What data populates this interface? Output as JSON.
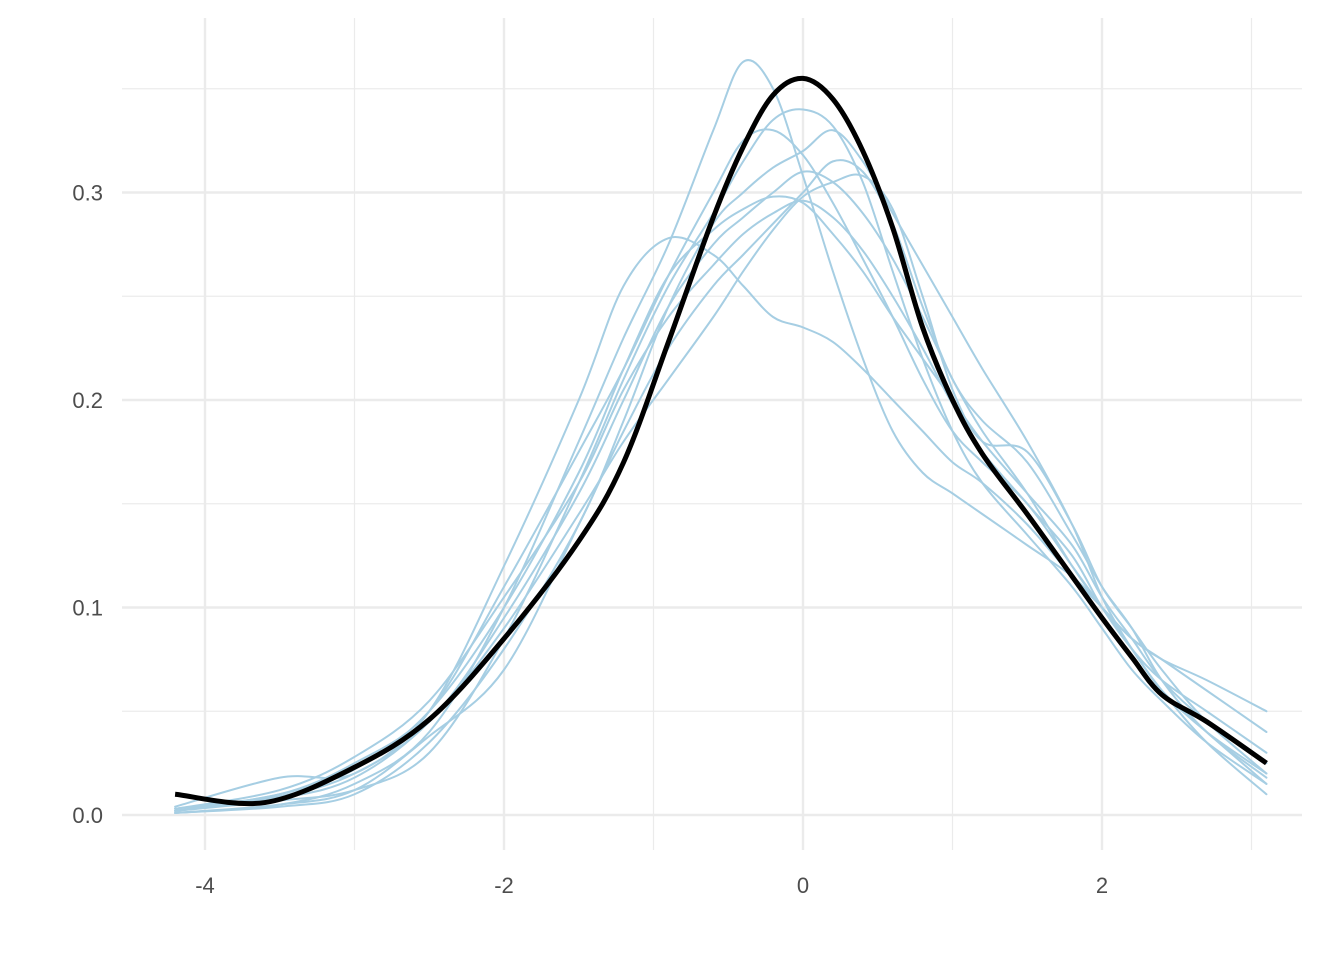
{
  "chart_data": {
    "type": "line",
    "title": "",
    "xlabel": "",
    "ylabel": "",
    "xlim": [
      -4.2,
      3.1
    ],
    "ylim": [
      0,
      0.355
    ],
    "x_ticks": [
      -4,
      -2,
      0,
      2
    ],
    "x_tick_labels": [
      "-4",
      "-2",
      "0",
      "2"
    ],
    "y_ticks": [
      0.0,
      0.1,
      0.2,
      0.3
    ],
    "y_tick_labels": [
      "0.0",
      "0.1",
      "0.2",
      "0.3"
    ],
    "grid": true,
    "legend": "none",
    "colors": {
      "replicate": "#a6cee3",
      "observed": "#000000",
      "grid": "#ebebeb"
    },
    "series": [
      {
        "role": "observed",
        "x": [
          -4.2,
          -3.6,
          -3.0,
          -2.5,
          -2.0,
          -1.5,
          -1.2,
          -0.9,
          -0.6,
          -0.4,
          -0.2,
          0.0,
          0.2,
          0.4,
          0.6,
          0.8,
          1.0,
          1.2,
          1.5,
          1.8,
          2.0,
          2.2,
          2.4,
          2.7,
          3.1
        ],
        "y": [
          0.01,
          0.006,
          0.023,
          0.046,
          0.085,
          0.132,
          0.17,
          0.228,
          0.288,
          0.322,
          0.347,
          0.355,
          0.345,
          0.32,
          0.283,
          0.235,
          0.2,
          0.174,
          0.145,
          0.115,
          0.095,
          0.076,
          0.058,
          0.045,
          0.025
        ]
      },
      {
        "role": "replicate",
        "x": [
          -4.2,
          -3.5,
          -3.0,
          -2.5,
          -2.0,
          -1.5,
          -1.2,
          -0.9,
          -0.6,
          -0.4,
          -0.2,
          0.0,
          0.2,
          0.4,
          0.6,
          0.8,
          1.0,
          1.2,
          1.5,
          1.8,
          2.0,
          2.2,
          2.4,
          2.7,
          3.1
        ],
        "y": [
          0.001,
          0.005,
          0.015,
          0.04,
          0.1,
          0.18,
          0.23,
          0.275,
          0.33,
          0.363,
          0.35,
          0.308,
          0.262,
          0.22,
          0.185,
          0.165,
          0.155,
          0.145,
          0.13,
          0.115,
          0.1,
          0.08,
          0.06,
          0.04,
          0.02
        ]
      },
      {
        "role": "replicate",
        "x": [
          -4.2,
          -3.5,
          -3.0,
          -2.5,
          -2.0,
          -1.5,
          -1.2,
          -0.9,
          -0.6,
          -0.4,
          -0.2,
          0.0,
          0.2,
          0.4,
          0.6,
          0.8,
          1.0,
          1.2,
          1.5,
          1.8,
          2.0,
          2.2,
          2.4,
          2.7,
          3.1
        ],
        "y": [
          0.003,
          0.01,
          0.025,
          0.05,
          0.11,
          0.175,
          0.215,
          0.26,
          0.3,
          0.325,
          0.33,
          0.318,
          0.295,
          0.268,
          0.24,
          0.21,
          0.185,
          0.17,
          0.15,
          0.12,
          0.1,
          0.08,
          0.06,
          0.04,
          0.015
        ]
      },
      {
        "role": "replicate",
        "x": [
          -4.2,
          -3.5,
          -3.0,
          -2.5,
          -2.0,
          -1.5,
          -1.2,
          -0.9,
          -0.6,
          -0.4,
          -0.2,
          0.0,
          0.2,
          0.4,
          0.6,
          0.8,
          1.0,
          1.2,
          1.5,
          1.8,
          2.0,
          2.2,
          2.4,
          2.7,
          3.1
        ],
        "y": [
          0.004,
          0.018,
          0.02,
          0.05,
          0.12,
          0.2,
          0.255,
          0.278,
          0.27,
          0.255,
          0.24,
          0.235,
          0.228,
          0.215,
          0.2,
          0.185,
          0.17,
          0.16,
          0.14,
          0.115,
          0.1,
          0.085,
          0.075,
          0.065,
          0.05
        ]
      },
      {
        "role": "replicate",
        "x": [
          -4.2,
          -3.5,
          -3.0,
          -2.5,
          -2.0,
          -1.5,
          -1.2,
          -0.9,
          -0.6,
          -0.4,
          -0.2,
          0.0,
          0.2,
          0.4,
          0.6,
          0.8,
          1.0,
          1.2,
          1.5,
          1.8,
          2.0,
          2.2,
          2.4,
          2.7,
          3.1
        ],
        "y": [
          0.002,
          0.008,
          0.018,
          0.045,
          0.09,
          0.145,
          0.18,
          0.21,
          0.24,
          0.262,
          0.282,
          0.298,
          0.305,
          0.308,
          0.292,
          0.25,
          0.205,
          0.18,
          0.175,
          0.14,
          0.11,
          0.09,
          0.07,
          0.045,
          0.02
        ]
      },
      {
        "role": "replicate",
        "x": [
          -4.2,
          -3.5,
          -3.0,
          -2.5,
          -2.0,
          -1.5,
          -1.2,
          -0.9,
          -0.6,
          -0.4,
          -0.2,
          0.0,
          0.2,
          0.4,
          0.6,
          0.8,
          1.0,
          1.2,
          1.5,
          1.8,
          2.0,
          2.2,
          2.4,
          2.7,
          3.1
        ],
        "y": [
          0.001,
          0.004,
          0.01,
          0.035,
          0.08,
          0.14,
          0.19,
          0.245,
          0.285,
          0.3,
          0.312,
          0.32,
          0.33,
          0.315,
          0.29,
          0.265,
          0.24,
          0.215,
          0.18,
          0.14,
          0.105,
          0.08,
          0.06,
          0.035,
          0.01
        ]
      },
      {
        "role": "replicate",
        "x": [
          -4.2,
          -3.5,
          -3.0,
          -2.5,
          -2.0,
          -1.5,
          -1.2,
          -0.9,
          -0.6,
          -0.4,
          -0.2,
          0.0,
          0.2,
          0.4,
          0.6,
          0.8,
          1.0,
          1.2,
          1.5,
          1.8,
          2.0,
          2.2,
          2.4,
          2.7,
          3.1
        ],
        "y": [
          0.002,
          0.007,
          0.012,
          0.03,
          0.085,
          0.16,
          0.21,
          0.255,
          0.29,
          0.315,
          0.335,
          0.34,
          0.332,
          0.305,
          0.262,
          0.22,
          0.185,
          0.16,
          0.135,
          0.11,
          0.09,
          0.07,
          0.055,
          0.035,
          0.015
        ]
      },
      {
        "role": "replicate",
        "x": [
          -4.2,
          -3.5,
          -3.0,
          -2.5,
          -2.0,
          -1.5,
          -1.2,
          -0.9,
          -0.6,
          -0.4,
          -0.2,
          0.0,
          0.2,
          0.4,
          0.6,
          0.8,
          1.0,
          1.2,
          1.5,
          1.8,
          2.0,
          2.2,
          2.4,
          2.7,
          3.1
        ],
        "y": [
          0.003,
          0.012,
          0.028,
          0.055,
          0.105,
          0.16,
          0.205,
          0.24,
          0.265,
          0.28,
          0.29,
          0.296,
          0.288,
          0.272,
          0.25,
          0.225,
          0.198,
          0.175,
          0.15,
          0.125,
          0.1,
          0.08,
          0.065,
          0.05,
          0.03
        ]
      },
      {
        "role": "replicate",
        "x": [
          -4.2,
          -3.5,
          -3.0,
          -2.5,
          -2.0,
          -1.5,
          -1.2,
          -0.9,
          -0.6,
          -0.4,
          -0.2,
          0.0,
          0.2,
          0.4,
          0.6,
          0.8,
          1.0,
          1.2,
          1.5,
          1.8,
          2.0,
          2.2,
          2.4,
          2.7,
          3.1
        ],
        "y": [
          0.001,
          0.005,
          0.012,
          0.038,
          0.07,
          0.14,
          0.185,
          0.225,
          0.255,
          0.27,
          0.285,
          0.3,
          0.315,
          0.31,
          0.285,
          0.245,
          0.21,
          0.19,
          0.17,
          0.135,
          0.11,
          0.09,
          0.065,
          0.04,
          0.018
        ]
      },
      {
        "role": "replicate",
        "x": [
          -4.2,
          -3.5,
          -3.0,
          -2.5,
          -2.0,
          -1.5,
          -1.2,
          -0.9,
          -0.6,
          -0.4,
          -0.2,
          0.0,
          0.2,
          0.4,
          0.6,
          0.8,
          1.0,
          1.2,
          1.5,
          1.8,
          2.0,
          2.2,
          2.4,
          2.7,
          3.1
        ],
        "y": [
          0.002,
          0.009,
          0.02,
          0.045,
          0.095,
          0.155,
          0.2,
          0.245,
          0.275,
          0.288,
          0.3,
          0.31,
          0.305,
          0.29,
          0.268,
          0.24,
          0.21,
          0.185,
          0.155,
          0.12,
          0.1,
          0.085,
          0.075,
          0.06,
          0.04
        ]
      },
      {
        "role": "replicate",
        "x": [
          -4.2,
          -3.5,
          -3.0,
          -2.5,
          -2.0,
          -1.5,
          -1.2,
          -0.9,
          -0.6,
          -0.4,
          -0.2,
          0.0,
          0.2,
          0.4,
          0.6,
          0.8,
          1.0,
          1.2,
          1.5,
          1.8,
          2.0,
          2.2,
          2.4,
          2.7,
          3.1
        ],
        "y": [
          0.002,
          0.01,
          0.022,
          0.05,
          0.1,
          0.165,
          0.215,
          0.26,
          0.282,
          0.292,
          0.298,
          0.295,
          0.28,
          0.262,
          0.24,
          0.22,
          0.2,
          0.18,
          0.155,
          0.13,
          0.105,
          0.085,
          0.065,
          0.045,
          0.025
        ]
      }
    ]
  }
}
